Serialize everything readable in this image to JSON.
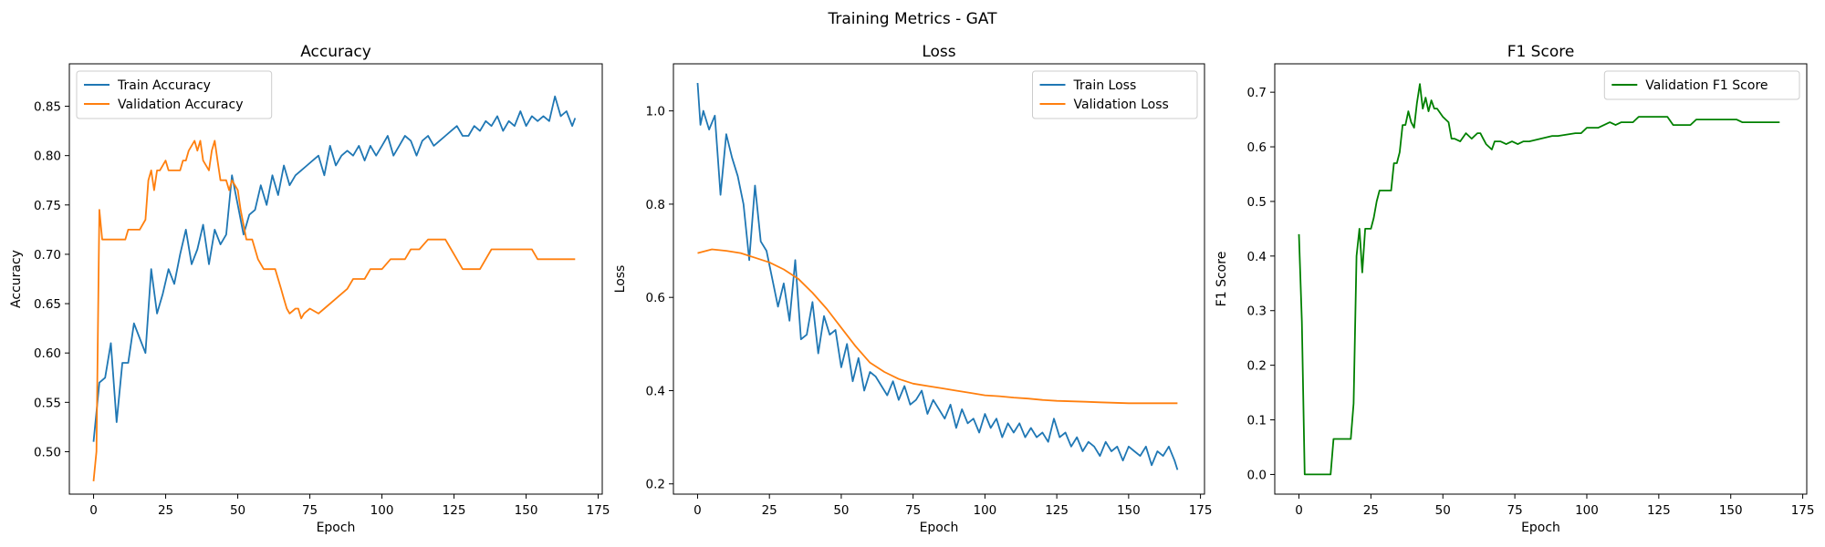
{
  "figure": {
    "title": "Training Metrics - GAT",
    "colors": {
      "train": "#1f77b4",
      "validation": "#ff7f0e",
      "f1": "#008000",
      "legend_border": "#cccccc"
    }
  },
  "chart_data": [
    {
      "type": "line",
      "title": "Accuracy",
      "xlabel": "Epoch",
      "ylabel": "Accuracy",
      "xlim": [
        -8.4,
        176.4
      ],
      "ylim": [
        0.457,
        0.893
      ],
      "xticks": [
        0,
        25,
        50,
        75,
        100,
        125,
        150,
        175
      ],
      "yticks": [
        0.5,
        0.55,
        0.6,
        0.65,
        0.7,
        0.75,
        0.8,
        0.85
      ],
      "ytick_decimals": 2,
      "grid": false,
      "legend_position": "top-left",
      "series": [
        {
          "name": "Train Accuracy",
          "color": "#1f77b4",
          "x": [
            0,
            2,
            4,
            6,
            8,
            10,
            12,
            14,
            16,
            18,
            20,
            22,
            24,
            26,
            28,
            30,
            32,
            34,
            36,
            38,
            40,
            42,
            44,
            46,
            48,
            50,
            52,
            54,
            56,
            58,
            60,
            62,
            64,
            66,
            68,
            70,
            72,
            74,
            76,
            78,
            80,
            82,
            84,
            86,
            88,
            90,
            92,
            94,
            96,
            98,
            100,
            102,
            104,
            106,
            108,
            110,
            112,
            114,
            116,
            118,
            120,
            122,
            124,
            126,
            128,
            130,
            132,
            134,
            136,
            138,
            140,
            142,
            144,
            146,
            148,
            150,
            152,
            154,
            156,
            158,
            160,
            162,
            164,
            166,
            167
          ],
          "y": [
            0.51,
            0.57,
            0.575,
            0.61,
            0.53,
            0.59,
            0.59,
            0.63,
            0.615,
            0.6,
            0.685,
            0.64,
            0.66,
            0.685,
            0.67,
            0.7,
            0.725,
            0.69,
            0.705,
            0.73,
            0.69,
            0.725,
            0.71,
            0.72,
            0.78,
            0.75,
            0.72,
            0.74,
            0.745,
            0.77,
            0.75,
            0.78,
            0.76,
            0.79,
            0.77,
            0.78,
            0.785,
            0.79,
            0.795,
            0.8,
            0.78,
            0.81,
            0.79,
            0.8,
            0.805,
            0.8,
            0.81,
            0.795,
            0.81,
            0.8,
            0.81,
            0.82,
            0.8,
            0.81,
            0.82,
            0.815,
            0.8,
            0.815,
            0.82,
            0.81,
            0.815,
            0.82,
            0.825,
            0.83,
            0.82,
            0.82,
            0.83,
            0.825,
            0.835,
            0.83,
            0.84,
            0.825,
            0.835,
            0.83,
            0.845,
            0.83,
            0.84,
            0.835,
            0.84,
            0.835,
            0.86,
            0.84,
            0.845,
            0.83,
            0.838
          ]
        },
        {
          "name": "Validation Accuracy",
          "color": "#ff7f0e",
          "x": [
            0,
            1,
            2,
            3,
            5,
            8,
            11,
            12,
            16,
            18,
            19,
            20,
            21,
            22,
            23,
            25,
            26,
            27,
            28,
            30,
            31,
            32,
            33,
            35,
            36,
            37,
            38,
            40,
            41,
            42,
            43,
            44,
            46,
            47,
            48,
            50,
            51,
            53,
            55,
            57,
            59,
            62,
            63,
            64,
            65,
            66,
            67,
            68,
            70,
            71,
            72,
            73,
            75,
            78,
            80,
            84,
            88,
            90,
            92,
            94,
            96,
            98,
            100,
            103,
            106,
            108,
            110,
            113,
            116,
            118,
            120,
            122,
            124,
            126,
            128,
            130,
            132,
            134,
            136,
            138,
            140,
            142,
            144,
            146,
            148,
            150,
            152,
            154,
            156,
            158,
            160,
            162,
            164,
            166,
            167
          ],
          "y": [
            0.47,
            0.5,
            0.745,
            0.715,
            0.715,
            0.715,
            0.715,
            0.725,
            0.725,
            0.735,
            0.775,
            0.785,
            0.765,
            0.785,
            0.785,
            0.795,
            0.785,
            0.785,
            0.785,
            0.785,
            0.795,
            0.795,
            0.805,
            0.815,
            0.805,
            0.815,
            0.795,
            0.785,
            0.805,
            0.815,
            0.795,
            0.775,
            0.775,
            0.765,
            0.775,
            0.765,
            0.745,
            0.715,
            0.715,
            0.695,
            0.685,
            0.685,
            0.685,
            0.675,
            0.665,
            0.655,
            0.645,
            0.64,
            0.645,
            0.645,
            0.635,
            0.64,
            0.645,
            0.64,
            0.645,
            0.655,
            0.665,
            0.675,
            0.675,
            0.675,
            0.685,
            0.685,
            0.685,
            0.695,
            0.695,
            0.695,
            0.705,
            0.705,
            0.715,
            0.715,
            0.715,
            0.715,
            0.705,
            0.695,
            0.685,
            0.685,
            0.685,
            0.685,
            0.695,
            0.705,
            0.705,
            0.705,
            0.705,
            0.705,
            0.705,
            0.705,
            0.705,
            0.695,
            0.695,
            0.695,
            0.695,
            0.695,
            0.695,
            0.695,
            0.695
          ]
        }
      ]
    },
    {
      "type": "line",
      "title": "Loss",
      "xlabel": "Epoch",
      "ylabel": "Loss",
      "xlim": [
        -8.4,
        176.4
      ],
      "ylim": [
        0.178,
        1.101
      ],
      "xticks": [
        0,
        25,
        50,
        75,
        100,
        125,
        150,
        175
      ],
      "yticks": [
        0.2,
        0.4,
        0.6,
        0.8,
        1.0
      ],
      "ytick_decimals": 1,
      "grid": false,
      "legend_position": "top-right",
      "series": [
        {
          "name": "Train Loss",
          "color": "#1f77b4",
          "x": [
            0,
            1,
            2,
            4,
            6,
            8,
            10,
            12,
            14,
            16,
            18,
            20,
            22,
            24,
            26,
            28,
            30,
            32,
            34,
            36,
            38,
            40,
            42,
            44,
            46,
            48,
            50,
            52,
            54,
            56,
            58,
            60,
            62,
            64,
            66,
            68,
            70,
            72,
            74,
            76,
            78,
            80,
            82,
            84,
            86,
            88,
            90,
            92,
            94,
            96,
            98,
            100,
            102,
            104,
            106,
            108,
            110,
            112,
            114,
            116,
            118,
            120,
            122,
            124,
            126,
            128,
            130,
            132,
            134,
            136,
            138,
            140,
            142,
            144,
            146,
            148,
            150,
            152,
            154,
            156,
            158,
            160,
            162,
            164,
            166,
            167
          ],
          "y": [
            1.06,
            0.97,
            1.0,
            0.96,
            0.99,
            0.82,
            0.95,
            0.9,
            0.86,
            0.8,
            0.68,
            0.84,
            0.72,
            0.7,
            0.64,
            0.58,
            0.63,
            0.55,
            0.68,
            0.51,
            0.52,
            0.59,
            0.48,
            0.56,
            0.52,
            0.53,
            0.45,
            0.5,
            0.42,
            0.47,
            0.4,
            0.44,
            0.43,
            0.41,
            0.39,
            0.42,
            0.38,
            0.41,
            0.37,
            0.38,
            0.4,
            0.35,
            0.38,
            0.36,
            0.34,
            0.37,
            0.32,
            0.36,
            0.33,
            0.34,
            0.31,
            0.35,
            0.32,
            0.34,
            0.3,
            0.33,
            0.31,
            0.33,
            0.3,
            0.32,
            0.3,
            0.31,
            0.29,
            0.34,
            0.3,
            0.31,
            0.28,
            0.3,
            0.27,
            0.29,
            0.28,
            0.26,
            0.29,
            0.27,
            0.28,
            0.25,
            0.28,
            0.27,
            0.26,
            0.28,
            0.24,
            0.27,
            0.26,
            0.28,
            0.25,
            0.23
          ]
        },
        {
          "name": "Validation Loss",
          "color": "#ff7f0e",
          "x": [
            0,
            5,
            10,
            15,
            20,
            25,
            30,
            35,
            40,
            45,
            50,
            55,
            60,
            65,
            70,
            75,
            80,
            85,
            90,
            95,
            100,
            105,
            110,
            115,
            120,
            125,
            130,
            135,
            140,
            145,
            150,
            155,
            160,
            165,
            167
          ],
          "y": [
            0.695,
            0.703,
            0.7,
            0.695,
            0.685,
            0.675,
            0.66,
            0.64,
            0.61,
            0.575,
            0.535,
            0.495,
            0.46,
            0.44,
            0.425,
            0.415,
            0.41,
            0.405,
            0.4,
            0.395,
            0.39,
            0.388,
            0.385,
            0.383,
            0.38,
            0.378,
            0.377,
            0.376,
            0.375,
            0.374,
            0.373,
            0.373,
            0.373,
            0.373,
            0.373
          ]
        }
      ]
    },
    {
      "type": "line",
      "title": "F1 Score",
      "xlabel": "Epoch",
      "ylabel": "F1 Score",
      "xlim": [
        -8.4,
        176.4
      ],
      "ylim": [
        -0.036,
        0.752
      ],
      "xticks": [
        0,
        25,
        50,
        75,
        100,
        125,
        150,
        175
      ],
      "yticks": [
        0.0,
        0.1,
        0.2,
        0.3,
        0.4,
        0.5,
        0.6,
        0.7
      ],
      "ytick_decimals": 1,
      "grid": false,
      "legend_position": "top-right",
      "series": [
        {
          "name": "Validation F1 Score",
          "color": "#008000",
          "x": [
            0,
            1,
            2,
            4,
            6,
            8,
            10,
            11,
            12,
            14,
            16,
            18,
            19,
            20,
            21,
            22,
            23,
            24,
            25,
            26,
            27,
            28,
            30,
            31,
            32,
            33,
            34,
            35,
            36,
            37,
            38,
            39,
            40,
            41,
            42,
            43,
            44,
            45,
            46,
            47,
            48,
            50,
            52,
            53,
            54,
            56,
            58,
            60,
            62,
            63,
            64,
            65,
            66,
            67,
            68,
            70,
            72,
            74,
            76,
            78,
            80,
            84,
            88,
            90,
            96,
            98,
            100,
            102,
            104,
            106,
            108,
            110,
            112,
            114,
            116,
            118,
            120,
            122,
            124,
            126,
            128,
            130,
            132,
            134,
            136,
            138,
            140,
            142,
            144,
            146,
            148,
            150,
            152,
            154,
            156,
            158,
            160,
            162,
            164,
            166,
            167
          ],
          "y": [
            0.44,
            0.28,
            0.0,
            0.0,
            0.0,
            0.0,
            0.0,
            0.0,
            0.065,
            0.065,
            0.065,
            0.065,
            0.13,
            0.4,
            0.45,
            0.37,
            0.45,
            0.45,
            0.45,
            0.47,
            0.5,
            0.52,
            0.52,
            0.52,
            0.52,
            0.57,
            0.57,
            0.59,
            0.64,
            0.64,
            0.665,
            0.645,
            0.635,
            0.68,
            0.715,
            0.67,
            0.69,
            0.665,
            0.685,
            0.67,
            0.67,
            0.655,
            0.645,
            0.615,
            0.615,
            0.61,
            0.625,
            0.615,
            0.625,
            0.625,
            0.615,
            0.605,
            0.6,
            0.595,
            0.61,
            0.61,
            0.605,
            0.61,
            0.605,
            0.61,
            0.61,
            0.615,
            0.62,
            0.62,
            0.625,
            0.625,
            0.635,
            0.635,
            0.635,
            0.64,
            0.645,
            0.64,
            0.645,
            0.645,
            0.645,
            0.655,
            0.655,
            0.655,
            0.655,
            0.655,
            0.655,
            0.64,
            0.64,
            0.64,
            0.64,
            0.65,
            0.65,
            0.65,
            0.65,
            0.65,
            0.65,
            0.65,
            0.65,
            0.645,
            0.645,
            0.645,
            0.645,
            0.645,
            0.645,
            0.645,
            0.645
          ]
        }
      ]
    }
  ]
}
